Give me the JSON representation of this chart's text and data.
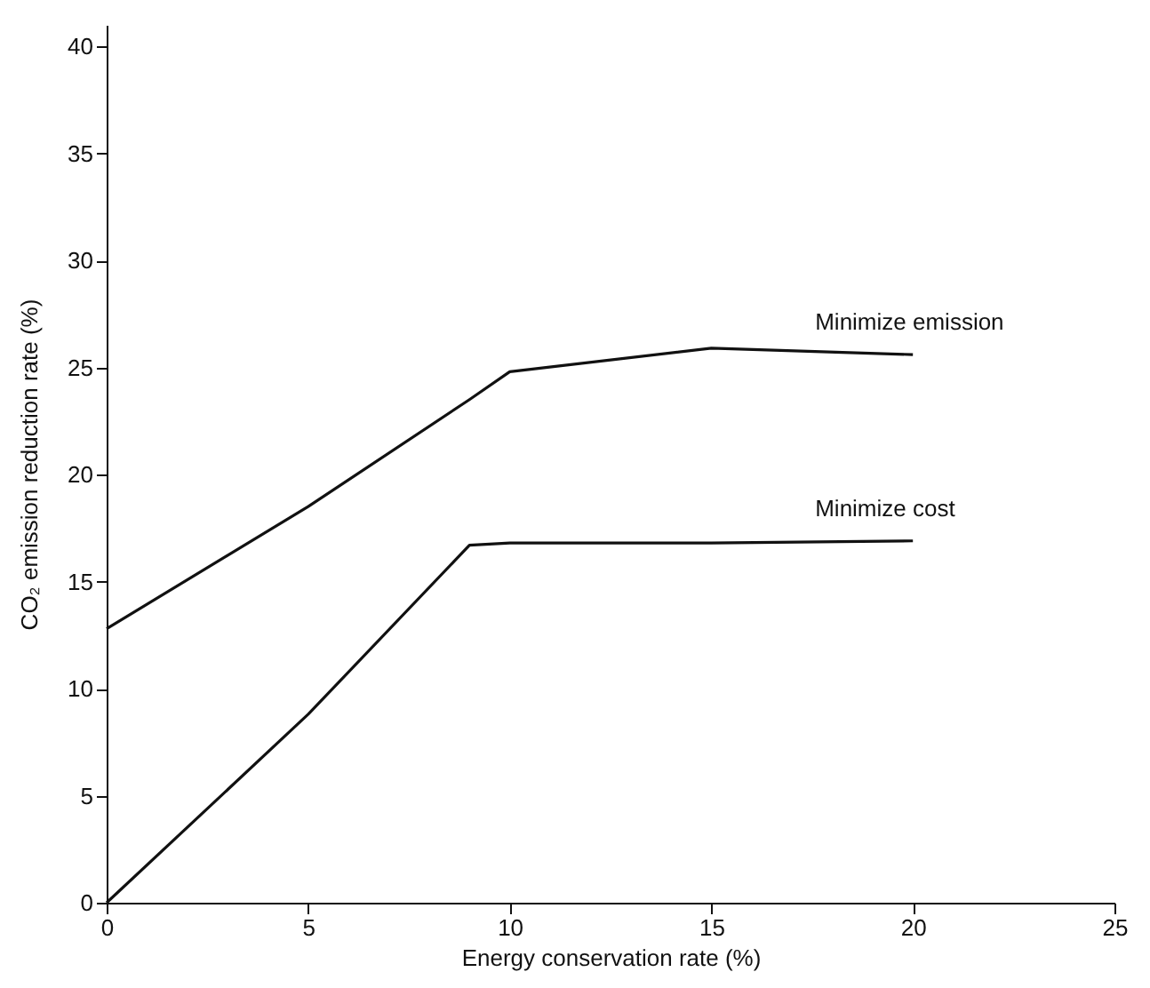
{
  "chart_data": {
    "type": "line",
    "xlabel": "Energy conservation rate (%)",
    "ylabel": "CO₂ emission reduction rate (%)",
    "xlim": [
      0,
      25
    ],
    "xticks": [
      0,
      5,
      10,
      15,
      20,
      25
    ],
    "ylim": [
      0,
      41
    ],
    "yticks": [
      0,
      5,
      10,
      15,
      20,
      25,
      30,
      35,
      40
    ],
    "grid": false,
    "legend": false,
    "marker": "none",
    "line_style": "solid",
    "series": [
      {
        "name": "Minimize emission",
        "color": "#111111",
        "x": [
          0,
          5,
          9,
          10,
          15,
          20
        ],
        "values": [
          12.8,
          18.5,
          23.5,
          24.8,
          25.9,
          25.6
        ]
      },
      {
        "name": "Minimize cost",
        "color": "#111111",
        "x": [
          0,
          5,
          9,
          10,
          15,
          20
        ],
        "values": [
          0,
          8.8,
          16.7,
          16.8,
          16.8,
          16.9
        ]
      }
    ]
  }
}
